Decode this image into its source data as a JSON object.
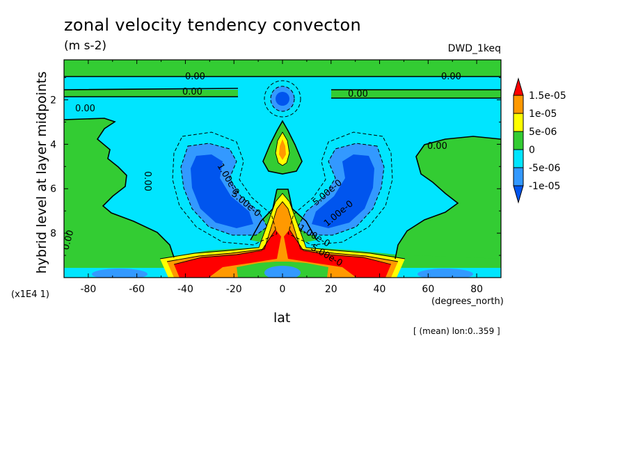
{
  "chart_data": {
    "type": "heatmap",
    "subtype": "filled-contour",
    "title": "zonal velocity tendency convecton",
    "units": "(m s-2)",
    "model": "DWD_1keq",
    "xlabel": "lat",
    "x_units": "(degrees_north)",
    "ylabel": "hybrid level at layer midpoints",
    "y_scale_label": "(x1E4 1)",
    "footnote": "[ (mean) lon:0..359 ]",
    "xlim": [
      -90,
      90
    ],
    "ylim": [
      10,
      0.2
    ],
    "x_ticks": [
      -80,
      -60,
      -40,
      -20,
      0,
      20,
      40,
      60,
      80
    ],
    "y_ticks": [
      2,
      4,
      6,
      8
    ],
    "grid": false,
    "colorbar": {
      "position": "right",
      "levels": [
        "1.5e-05",
        "1e-05",
        "5e-06",
        "0",
        "-5e-06",
        "-1e-05"
      ],
      "colors": [
        "#ff0000",
        "#ff9900",
        "#ffff00",
        "#33cc33",
        "#00e5ff",
        "#3399ff",
        "#0055ee"
      ]
    },
    "contour_labels": [
      "0.00",
      "0.00",
      "0.00",
      "0.00",
      "0.00",
      "0.00",
      "0.00",
      "0.00",
      "1.00e-0",
      "5.00e-0",
      "5.00e-0",
      "1.00e-0",
      "1.00e-0",
      "5.00e-0"
    ],
    "features": [
      {
        "name": "negative lobe SH",
        "lat_center": -30,
        "level_range": [
          4.5,
          8.3
        ],
        "min_value": "-1e-05"
      },
      {
        "name": "negative lobe NH",
        "lat_center": 30,
        "level_range": [
          4.5,
          8.3
        ],
        "min_value": "-1e-05"
      },
      {
        "name": "positive low-level band",
        "lat_range": [
          -42,
          42
        ],
        "level_range": [
          8.8,
          10
        ],
        "max_value": "1.5e-05"
      },
      {
        "name": "equatorial positive plume",
        "lat_center": 0,
        "level_range": [
          3,
          5.5
        ],
        "max_value": "1.5e-05"
      },
      {
        "name": "equatorial negative cell upper",
        "lat_center": 0,
        "level_range": [
          1.3,
          2.6
        ],
        "min_value": "-5e-06"
      }
    ]
  }
}
